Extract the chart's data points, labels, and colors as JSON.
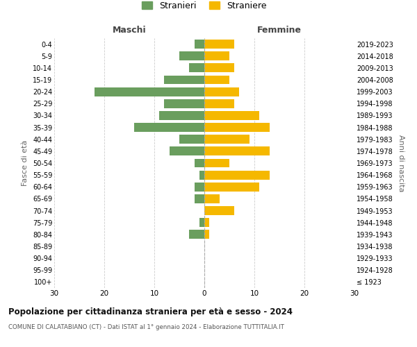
{
  "age_groups": [
    "100+",
    "95-99",
    "90-94",
    "85-89",
    "80-84",
    "75-79",
    "70-74",
    "65-69",
    "60-64",
    "55-59",
    "50-54",
    "45-49",
    "40-44",
    "35-39",
    "30-34",
    "25-29",
    "20-24",
    "15-19",
    "10-14",
    "5-9",
    "0-4"
  ],
  "birth_years": [
    "≤ 1923",
    "1924-1928",
    "1929-1933",
    "1934-1938",
    "1939-1943",
    "1944-1948",
    "1949-1953",
    "1954-1958",
    "1959-1963",
    "1964-1968",
    "1969-1973",
    "1974-1978",
    "1979-1983",
    "1984-1988",
    "1989-1993",
    "1994-1998",
    "1999-2003",
    "2004-2008",
    "2009-2013",
    "2014-2018",
    "2019-2023"
  ],
  "males": [
    0,
    0,
    0,
    0,
    3,
    1,
    0,
    2,
    2,
    1,
    2,
    7,
    5,
    14,
    9,
    8,
    22,
    8,
    3,
    5,
    2
  ],
  "females": [
    0,
    0,
    0,
    0,
    1,
    1,
    6,
    3,
    11,
    13,
    5,
    13,
    9,
    13,
    11,
    6,
    7,
    5,
    6,
    5,
    6
  ],
  "male_color": "#6a9e5e",
  "female_color": "#f5b800",
  "background_color": "#ffffff",
  "grid_color": "#cccccc",
  "title": "Popolazione per cittadinanza straniera per età e sesso - 2024",
  "subtitle": "COMUNE DI CALATABIANO (CT) - Dati ISTAT al 1° gennaio 2024 - Elaborazione TUTTITALIA.IT",
  "ylabel_left": "Fasce di età",
  "ylabel_right": "Anni di nascita",
  "xlabel_left": "Maschi",
  "xlabel_right": "Femmine",
  "legend_male": "Stranieri",
  "legend_female": "Straniere",
  "xlim": 30,
  "figsize": [
    6.0,
    5.0
  ],
  "dpi": 100
}
